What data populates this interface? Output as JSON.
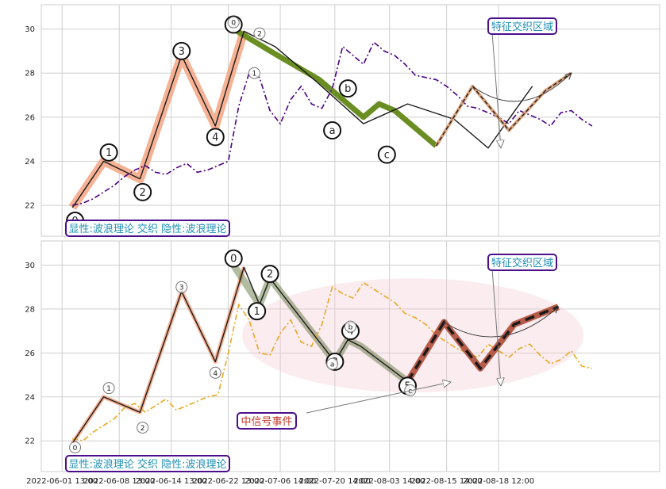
{
  "chart_data": [
    {
      "type": "line",
      "title": "",
      "xlabel": "",
      "ylabel": "",
      "ylim": [
        20.6,
        31.1
      ],
      "yticks": [
        22,
        24,
        26,
        28,
        30
      ],
      "xticks": [
        "2022-06-01 13:00",
        "2022-06-08 13:00",
        "2022-06-14 13:00",
        "2022-06-22 13:00",
        "2022-07-06 14:00",
        "2022-07-20 14:00",
        "2022-08-03 14:00",
        "2022-08-15 14:00",
        "2022-08-18 12:00"
      ],
      "grid": true,
      "colors": {
        "price": "#4b0082",
        "wave": "#1a1a1a",
        "impulse_glow": "#f4a582",
        "correction": "#6b8e23",
        "projection": "#d8a07a"
      },
      "series": [
        {
          "role": "price",
          "style": "dash-dot",
          "x": [
            0.0,
            0.2,
            0.4,
            0.6,
            0.8,
            1.0,
            1.2,
            1.4,
            1.6,
            1.8,
            2.0,
            2.2,
            2.4,
            2.6,
            2.8,
            3.0,
            3.2,
            3.4,
            3.6,
            3.8,
            4.0,
            4.2,
            4.4,
            4.6,
            4.8,
            5.0,
            5.2,
            5.4,
            5.6,
            5.8,
            6.0,
            6.2,
            6.4,
            6.6,
            6.8,
            7.0,
            7.2,
            7.4,
            7.6,
            7.8,
            8.0,
            8.2,
            8.4,
            8.6,
            8.8,
            9.0,
            9.2,
            9.4,
            9.6,
            9.8,
            10.0
          ],
          "values": [
            22.0,
            22.1,
            22.3,
            22.6,
            22.9,
            23.3,
            23.6,
            23.8,
            23.5,
            23.4,
            23.7,
            23.9,
            23.5,
            23.6,
            23.8,
            24.0,
            26.5,
            28.0,
            27.8,
            26.3,
            25.7,
            26.8,
            27.4,
            26.6,
            26.4,
            27.3,
            29.2,
            28.8,
            28.4,
            29.4,
            29.0,
            28.8,
            28.4,
            27.9,
            27.8,
            27.7,
            27.4,
            27.0,
            26.5,
            26.4,
            26.2,
            26.0,
            25.7,
            26.3,
            26.1,
            25.9,
            25.6,
            26.2,
            26.3,
            25.9,
            25.6
          ]
        },
        {
          "role": "wave",
          "style": "solid",
          "x": [
            0.0,
            0.6,
            1.3,
            2.1,
            2.75,
            3.3,
            3.9,
            4.7,
            5.6,
            6.45,
            7.35,
            8.0,
            8.85
          ],
          "values": [
            21.9,
            24.0,
            23.2,
            28.8,
            25.6,
            29.9,
            29.2,
            27.6,
            25.7,
            26.6,
            25.9,
            24.6,
            27.4
          ]
        },
        {
          "role": "correction",
          "style": "solid",
          "x": [
            3.1,
            3.95,
            4.75,
            5.6,
            5.9,
            6.2,
            7.0
          ],
          "values": [
            30.0,
            28.8,
            27.7,
            26.0,
            26.6,
            26.3,
            24.7
          ]
        },
        {
          "role": "projection",
          "style": "dashed",
          "x": [
            7.0,
            7.7,
            8.4,
            9.1,
            9.6
          ],
          "values": [
            24.7,
            27.4,
            25.4,
            27.2,
            28.0
          ]
        }
      ],
      "wave_labels": [
        {
          "text": "0",
          "x": 0.05,
          "y": 21.3,
          "size": "big"
        },
        {
          "text": "1",
          "x": 0.7,
          "y": 24.4,
          "size": "big"
        },
        {
          "text": "2",
          "x": 1.35,
          "y": 22.6,
          "size": "big"
        },
        {
          "text": "3",
          "x": 2.1,
          "y": 29.0,
          "size": "big"
        },
        {
          "text": "4",
          "x": 2.75,
          "y": 25.1,
          "size": "big"
        },
        {
          "text": "5",
          "x": 3.1,
          "y": 30.2,
          "size": "big"
        },
        {
          "text": "0",
          "x": 3.1,
          "y": 30.3,
          "size": "small"
        },
        {
          "text": "1",
          "x": 3.5,
          "y": 28.0,
          "size": "small"
        },
        {
          "text": "2",
          "x": 3.6,
          "y": 29.8,
          "size": "small"
        },
        {
          "text": "a",
          "x": 5.0,
          "y": 25.4,
          "size": "big"
        },
        {
          "text": "b",
          "x": 5.3,
          "y": 27.3,
          "size": "big"
        },
        {
          "text": "c",
          "x": 6.05,
          "y": 24.3,
          "size": "big"
        }
      ],
      "box_label": "显性:波浪理论 交织 隐性:波浪理论",
      "feature_label": "特征交织区域"
    },
    {
      "type": "line",
      "title": "",
      "xlabel": "",
      "ylabel": "",
      "ylim": [
        20.6,
        31.1
      ],
      "yticks": [
        22,
        24,
        26,
        28,
        30
      ],
      "xticks": [
        "2022-06-01 13:00",
        "2022-06-08 13:00",
        "2022-06-14 13:00",
        "2022-06-22 13:00",
        "2022-07-06 14:00",
        "2022-07-20 14:00",
        "2022-08-03 14:00",
        "2022-08-15 14:00",
        "2022-08-18 12:00"
      ],
      "grid": true,
      "colors": {
        "price": "#e8a820",
        "wave": "#1a1a1a",
        "impulse_glow": "#f4a582",
        "correction": "#556b2f",
        "projection": "#b85c4a"
      },
      "series": [
        {
          "role": "price",
          "style": "dash-dot",
          "x": [
            0.0,
            0.2,
            0.4,
            0.6,
            0.8,
            1.0,
            1.2,
            1.4,
            1.6,
            1.8,
            2.0,
            2.2,
            2.4,
            2.6,
            2.8,
            3.0,
            3.2,
            3.4,
            3.6,
            3.8,
            4.0,
            4.2,
            4.4,
            4.6,
            4.8,
            5.0,
            5.2,
            5.4,
            5.6,
            5.8,
            6.0,
            6.2,
            6.4,
            6.6,
            6.8,
            7.0,
            7.2,
            7.4,
            7.6,
            7.8,
            8.0,
            8.2,
            8.4,
            8.6,
            8.8,
            9.0,
            9.2,
            9.4,
            9.6,
            9.8,
            10.0
          ],
          "values": [
            22.1,
            22.0,
            22.4,
            22.7,
            23.0,
            23.5,
            23.7,
            23.3,
            23.6,
            23.9,
            23.4,
            23.6,
            23.8,
            24.0,
            24.1,
            26.0,
            28.2,
            27.5,
            26.0,
            25.9,
            26.9,
            27.5,
            26.5,
            26.3,
            27.3,
            29.0,
            28.7,
            28.5,
            29.2,
            28.9,
            28.6,
            28.3,
            27.8,
            27.6,
            27.3,
            26.8,
            26.5,
            26.2,
            26.0,
            25.8,
            26.4,
            26.1,
            25.8,
            26.2,
            26.4,
            25.9,
            25.5,
            25.7,
            26.1,
            25.4,
            25.3
          ]
        },
        {
          "role": "wave",
          "style": "solid",
          "x": [
            0.0,
            0.6,
            1.3,
            2.1,
            2.75,
            3.3,
            3.6,
            3.8,
            5.05,
            5.3,
            5.55,
            6.45,
            7.1
          ],
          "values": [
            21.9,
            24.0,
            23.3,
            28.8,
            25.6,
            29.9,
            28.2,
            29.4,
            25.6,
            26.6,
            26.3,
            24.7,
            27.4
          ]
        },
        {
          "role": "correction",
          "style": "solid",
          "x": [
            3.1,
            3.6,
            3.8,
            5.05,
            5.3,
            5.55,
            6.45
          ],
          "values": [
            30.0,
            28.2,
            29.4,
            25.6,
            26.6,
            26.3,
            24.7
          ]
        },
        {
          "role": "projection",
          "style": "dashed",
          "x": [
            6.45,
            7.15,
            7.85,
            8.5,
            9.35
          ],
          "values": [
            24.7,
            27.4,
            25.3,
            27.3,
            28.1
          ]
        }
      ],
      "wave_labels": [
        {
          "text": "0",
          "x": 0.05,
          "y": 21.7,
          "size": "small"
        },
        {
          "text": "1",
          "x": 0.7,
          "y": 24.4,
          "size": "small"
        },
        {
          "text": "2",
          "x": 1.35,
          "y": 22.6,
          "size": "small"
        },
        {
          "text": "3",
          "x": 2.1,
          "y": 29.0,
          "size": "small"
        },
        {
          "text": "4",
          "x": 2.75,
          "y": 25.1,
          "size": "small"
        },
        {
          "text": "0",
          "x": 3.1,
          "y": 30.3,
          "size": "big"
        },
        {
          "text": "1",
          "x": 3.55,
          "y": 27.9,
          "size": "big"
        },
        {
          "text": "2",
          "x": 3.8,
          "y": 29.6,
          "size": "big"
        },
        {
          "text": "3",
          "x": 5.05,
          "y": 25.6,
          "size": "big"
        },
        {
          "text": "4",
          "x": 5.35,
          "y": 27.0,
          "size": "big"
        },
        {
          "text": "5",
          "x": 6.45,
          "y": 24.5,
          "size": "big"
        },
        {
          "text": "a",
          "x": 5.0,
          "y": 25.5,
          "size": "small"
        },
        {
          "text": "b",
          "x": 5.35,
          "y": 27.2,
          "size": "small"
        },
        {
          "text": "c",
          "x": 6.5,
          "y": 24.3,
          "size": "small"
        }
      ],
      "box_label": "显性:波浪理论 交织 隐性:波浪理论",
      "feature_label": "特征交织区域",
      "signal_label": "中信号事件"
    }
  ]
}
